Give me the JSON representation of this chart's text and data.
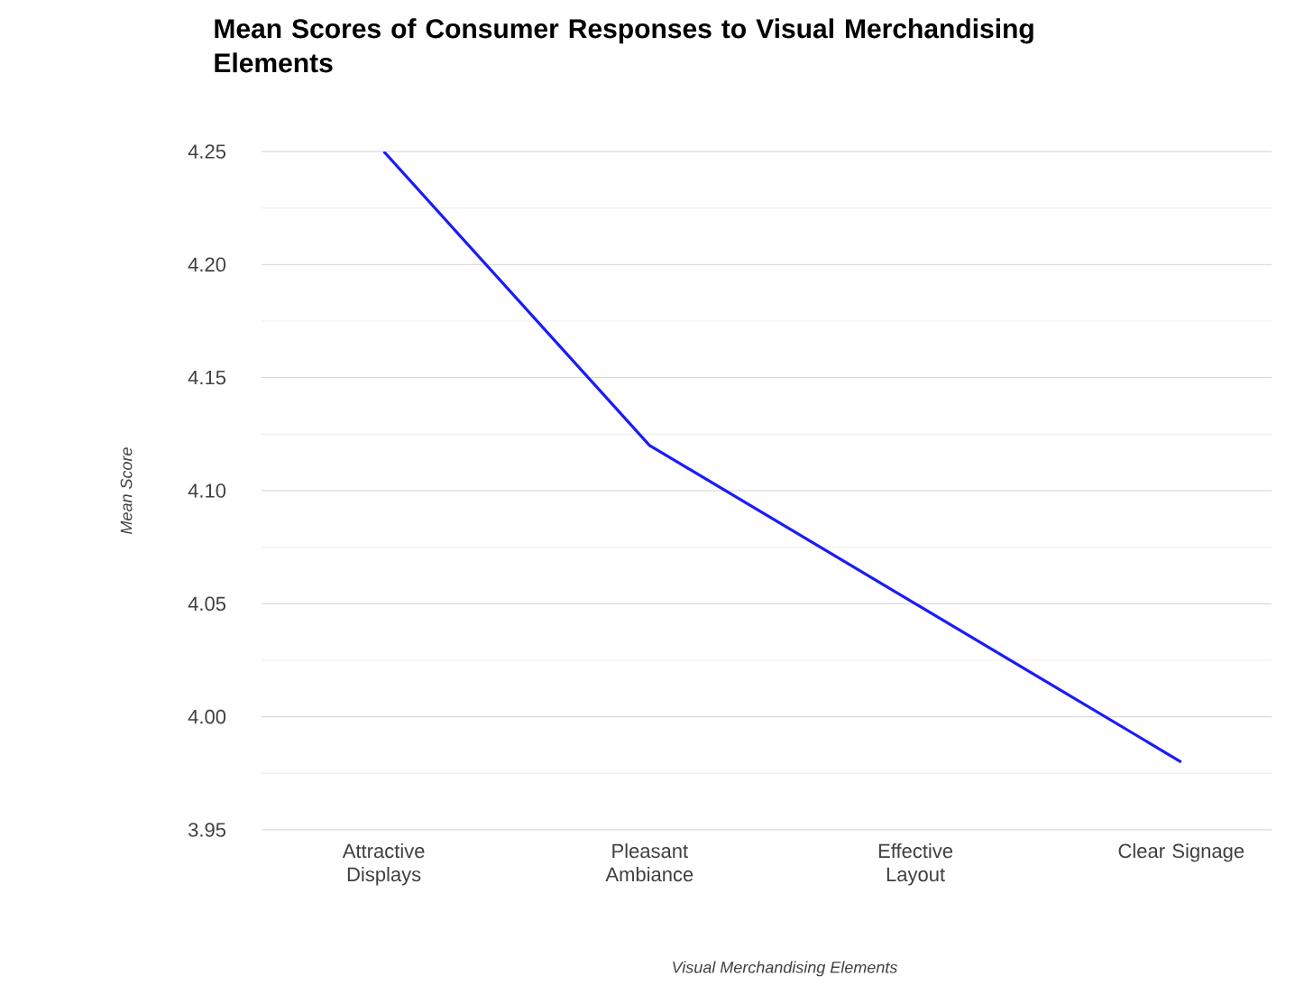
{
  "chart_data": {
    "type": "line",
    "title": "Mean Scores of Consumer Responses to Visual Merchandising Elements",
    "xlabel": "Visual Merchandising Elements",
    "ylabel": "Mean Score",
    "categories": [
      "Attractive Displays",
      "Pleasant Ambiance",
      "Effective Layout",
      "Clear Signage"
    ],
    "series": [
      {
        "color": "#1a1aff",
        "values": [
          4.25,
          4.12,
          4.05,
          3.98
        ]
      }
    ],
    "ylim": [
      3.95,
      4.25
    ],
    "yticks": [
      3.95,
      {
        "value": 4.0,
        "label": "4.00"
      },
      4.05,
      {
        "value": 4.1,
        "label": "4.10"
      },
      4.15,
      {
        "value": 4.2,
        "label": "4.20"
      },
      4.25
    ],
    "grid": "y",
    "marker": "none",
    "line_style": "solid"
  }
}
